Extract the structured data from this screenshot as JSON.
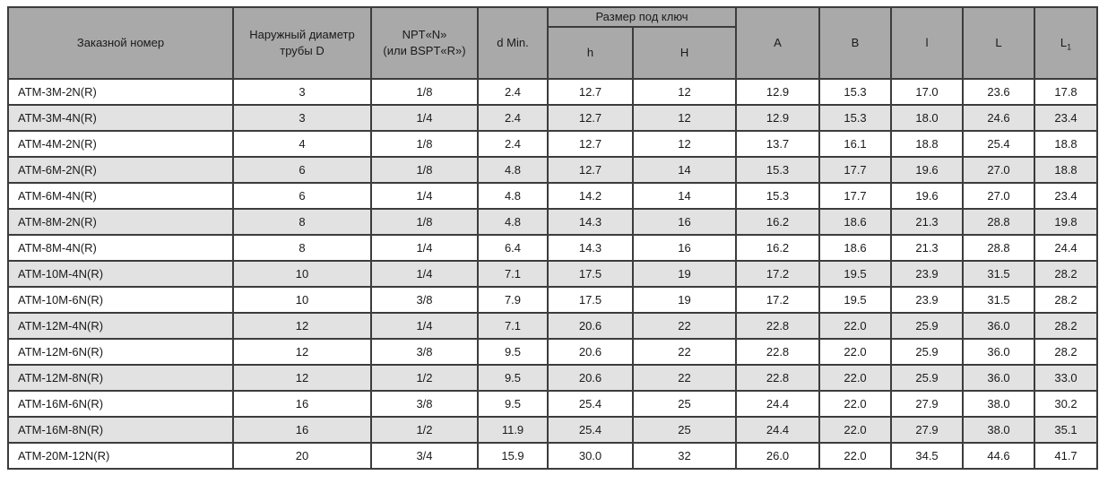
{
  "colors": {
    "header_bg": "#a9a9a9",
    "stripe_bg": "#e2e2e2",
    "border": "#3c3c3c",
    "text": "#1a1a1a"
  },
  "table": {
    "header": {
      "order": "Заказной номер",
      "diameter_line1": "Наружный диаметр",
      "diameter_line2": "трубы D",
      "npt_line1": "NPT«N»",
      "npt_line2": "(или BSPT«R»)",
      "d_min": "d Min.",
      "wrench_group": "Размер под ключ",
      "h_small": "h",
      "h_big": "H",
      "A": "A",
      "B": "B",
      "l": "l",
      "L": "L",
      "L1_base": "L",
      "L1_sub": "1"
    },
    "rows": [
      [
        "ATM-3M-2N(R)",
        "3",
        "1/8",
        "2.4",
        "12.7",
        "12",
        "12.9",
        "15.3",
        "17.0",
        "23.6",
        "17.8"
      ],
      [
        "ATM-3M-4N(R)",
        "3",
        "1/4",
        "2.4",
        "12.7",
        "12",
        "12.9",
        "15.3",
        "18.0",
        "24.6",
        "23.4"
      ],
      [
        "ATM-4M-2N(R)",
        "4",
        "1/8",
        "2.4",
        "12.7",
        "12",
        "13.7",
        "16.1",
        "18.8",
        "25.4",
        "18.8"
      ],
      [
        "ATM-6M-2N(R)",
        "6",
        "1/8",
        "4.8",
        "12.7",
        "14",
        "15.3",
        "17.7",
        "19.6",
        "27.0",
        "18.8"
      ],
      [
        "ATM-6M-4N(R)",
        "6",
        "1/4",
        "4.8",
        "14.2",
        "14",
        "15.3",
        "17.7",
        "19.6",
        "27.0",
        "23.4"
      ],
      [
        "ATM-8M-2N(R)",
        "8",
        "1/8",
        "4.8",
        "14.3",
        "16",
        "16.2",
        "18.6",
        "21.3",
        "28.8",
        "19.8"
      ],
      [
        "ATM-8M-4N(R)",
        "8",
        "1/4",
        "6.4",
        "14.3",
        "16",
        "16.2",
        "18.6",
        "21.3",
        "28.8",
        "24.4"
      ],
      [
        "ATM-10M-4N(R)",
        "10",
        "1/4",
        "7.1",
        "17.5",
        "19",
        "17.2",
        "19.5",
        "23.9",
        "31.5",
        "28.2"
      ],
      [
        "ATM-10M-6N(R)",
        "10",
        "3/8",
        "7.9",
        "17.5",
        "19",
        "17.2",
        "19.5",
        "23.9",
        "31.5",
        "28.2"
      ],
      [
        "ATM-12M-4N(R)",
        "12",
        "1/4",
        "7.1",
        "20.6",
        "22",
        "22.8",
        "22.0",
        "25.9",
        "36.0",
        "28.2"
      ],
      [
        "ATM-12M-6N(R)",
        "12",
        "3/8",
        "9.5",
        "20.6",
        "22",
        "22.8",
        "22.0",
        "25.9",
        "36.0",
        "28.2"
      ],
      [
        "ATM-12M-8N(R)",
        "12",
        "1/2",
        "9.5",
        "20.6",
        "22",
        "22.8",
        "22.0",
        "25.9",
        "36.0",
        "33.0"
      ],
      [
        "ATM-16M-6N(R)",
        "16",
        "3/8",
        "9.5",
        "25.4",
        "25",
        "24.4",
        "22.0",
        "27.9",
        "38.0",
        "30.2"
      ],
      [
        "ATM-16M-8N(R)",
        "16",
        "1/2",
        "11.9",
        "25.4",
        "25",
        "24.4",
        "22.0",
        "27.9",
        "38.0",
        "35.1"
      ],
      [
        "ATM-20M-12N(R)",
        "20",
        "3/4",
        "15.9",
        "30.0",
        "32",
        "26.0",
        "22.0",
        "34.5",
        "44.6",
        "41.7"
      ]
    ]
  }
}
